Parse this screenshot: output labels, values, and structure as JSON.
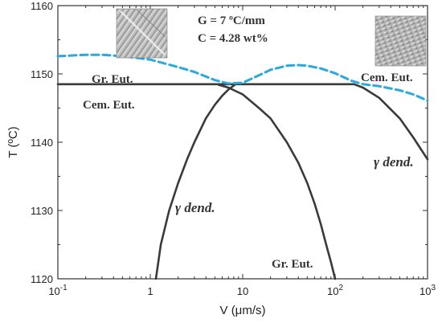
{
  "chart_data": {
    "type": "line",
    "xlabel": "V (μm/s)",
    "ylabel": "T (ºC)",
    "xscale": "log",
    "xlim": [
      0.1,
      1000
    ],
    "ylim": [
      1120,
      1160
    ],
    "grid": false,
    "x_ticks": [
      {
        "value": 0.1,
        "base": "10",
        "exp": "-1"
      },
      {
        "value": 1,
        "base": "1",
        "exp": ""
      },
      {
        "value": 10,
        "base": "10",
        "exp": ""
      },
      {
        "value": 100,
        "base": "10",
        "exp": "2"
      },
      {
        "value": 1000,
        "base": "10",
        "exp": "3"
      }
    ],
    "y_ticks": [
      1120,
      1130,
      1140,
      1150,
      1160
    ],
    "annotations": {
      "parameters": [
        "G = 7 ºC/mm",
        "C = 4.28 wt%"
      ],
      "gr_eut_top": "Gr. Eut.",
      "cem_eut_left": "Cem. Eut.",
      "cem_eut_right": "Cem. Eut.",
      "gamma_dend_left": "γ dend.",
      "gamma_dend_right": "γ dend.",
      "gr_eut_bottom": "Gr. Eut."
    },
    "series": [
      {
        "style": "solid",
        "color": "#3a3a3a",
        "x": [
          0.1,
          1,
          10,
          100,
          160,
          200,
          300,
          500,
          700,
          1000
        ],
        "y": [
          1148.5,
          1148.5,
          1148.5,
          1148.5,
          1148.5,
          1148,
          1146.5,
          1143.5,
          1140.7,
          1137.5
        ]
      },
      {
        "style": "solid",
        "color": "#3a3a3a",
        "x": [
          1.15,
          1.3,
          1.6,
          2,
          2.5,
          3,
          4,
          5,
          6,
          7,
          8,
          8.5
        ],
        "y": [
          1120,
          1125,
          1130,
          1134,
          1137.5,
          1140,
          1143.5,
          1145.5,
          1146.8,
          1147.7,
          1148.3,
          1148.6
        ]
      },
      {
        "style": "solid",
        "color": "#3a3a3a",
        "x": [
          5.5,
          7,
          10,
          15,
          20,
          30,
          40,
          50,
          60,
          70,
          80,
          90,
          100
        ],
        "y": [
          1148.4,
          1148,
          1147,
          1145,
          1143.5,
          1140,
          1137,
          1134,
          1131,
          1128,
          1125,
          1122.5,
          1120
        ]
      },
      {
        "style": "dashed",
        "color": "#2aa9dd",
        "x": [
          0.1,
          0.2,
          0.3,
          0.5,
          1,
          2,
          3,
          5,
          7,
          10,
          15,
          20,
          30,
          40,
          50,
          70,
          100,
          150,
          200,
          300,
          500,
          700,
          1000
        ],
        "y": [
          1152.6,
          1152.8,
          1152.8,
          1152.6,
          1152.1,
          1151,
          1150.3,
          1149.1,
          1148.6,
          1148.7,
          1149.8,
          1150.6,
          1151.2,
          1151.3,
          1151.2,
          1150.8,
          1150.1,
          1149,
          1148.5,
          1148.2,
          1147.6,
          1147,
          1146.1
        ]
      }
    ]
  }
}
